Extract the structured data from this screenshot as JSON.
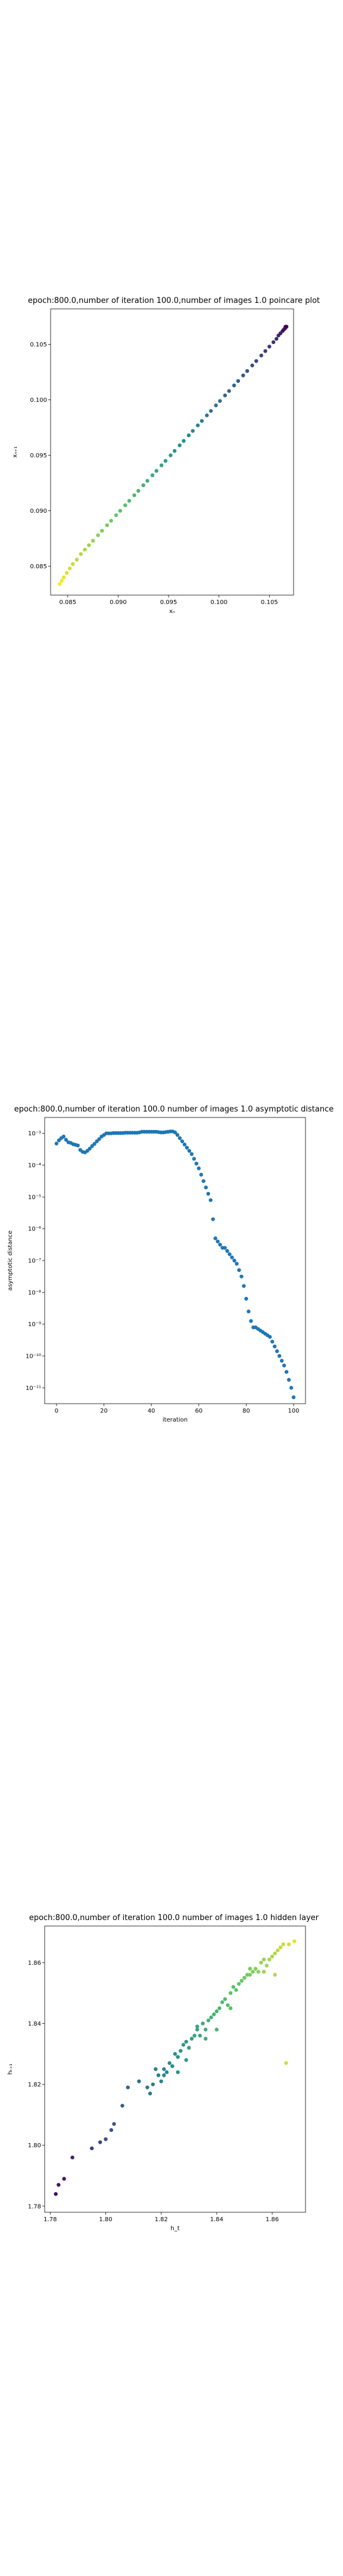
{
  "chart_data": [
    {
      "type": "scatter",
      "title": "epoch:800.0,number of iteration 100.0,number of images 1.0 poincare plot",
      "xlabel": "xₙ",
      "ylabel": "xₙ₊₁",
      "xlim": [
        0.0833,
        0.1074
      ],
      "ylim": [
        0.0824,
        0.1082
      ],
      "x_ticks": [
        "0.085",
        "0.090",
        "0.095",
        "0.100",
        "0.105"
      ],
      "y_ticks": [
        "0.085",
        "0.090",
        "0.095",
        "0.100",
        "0.105"
      ],
      "colormap": "viridis",
      "points": [
        [
          0.0842,
          0.0834
        ],
        [
          0.0844,
          0.0837
        ],
        [
          0.0846,
          0.084
        ],
        [
          0.0849,
          0.0844
        ],
        [
          0.0852,
          0.0848
        ],
        [
          0.0855,
          0.0852
        ],
        [
          0.0859,
          0.0856
        ],
        [
          0.0863,
          0.0861
        ],
        [
          0.0867,
          0.0865
        ],
        [
          0.0871,
          0.0869
        ],
        [
          0.0875,
          0.0873
        ],
        [
          0.088,
          0.0878
        ],
        [
          0.0884,
          0.0882
        ],
        [
          0.0889,
          0.0887
        ],
        [
          0.0893,
          0.0891
        ],
        [
          0.0898,
          0.0896
        ],
        [
          0.0902,
          0.09
        ],
        [
          0.0907,
          0.0905
        ],
        [
          0.0911,
          0.0909
        ],
        [
          0.0916,
          0.0914
        ],
        [
          0.092,
          0.0918
        ],
        [
          0.0925,
          0.0923
        ],
        [
          0.0929,
          0.0927
        ],
        [
          0.0934,
          0.0932
        ],
        [
          0.0938,
          0.0936
        ],
        [
          0.0943,
          0.0941
        ],
        [
          0.0947,
          0.0945
        ],
        [
          0.0952,
          0.095
        ],
        [
          0.0956,
          0.0954
        ],
        [
          0.0961,
          0.0959
        ],
        [
          0.0965,
          0.0963
        ],
        [
          0.097,
          0.0968
        ],
        [
          0.0974,
          0.0972
        ],
        [
          0.0979,
          0.0977
        ],
        [
          0.0983,
          0.0981
        ],
        [
          0.0988,
          0.0986
        ],
        [
          0.0992,
          0.099
        ],
        [
          0.0997,
          0.0995
        ],
        [
          0.1001,
          0.0999
        ],
        [
          0.1006,
          0.1004
        ],
        [
          0.101,
          0.1008
        ],
        [
          0.1015,
          0.1013
        ],
        [
          0.1019,
          0.1017
        ],
        [
          0.1024,
          0.1022
        ],
        [
          0.1028,
          0.1026
        ],
        [
          0.1033,
          0.1031
        ],
        [
          0.1037,
          0.1035
        ],
        [
          0.1042,
          0.104
        ],
        [
          0.1046,
          0.1044
        ],
        [
          0.105,
          0.1048
        ],
        [
          0.1054,
          0.1052
        ],
        [
          0.1057,
          0.1055
        ],
        [
          0.1059,
          0.1058
        ],
        [
          0.1061,
          0.106
        ],
        [
          0.1063,
          0.1062
        ],
        [
          0.1064,
          0.1063
        ],
        [
          0.1065,
          0.1064
        ],
        [
          0.1066,
          0.1065
        ],
        [
          0.1066,
          0.1066
        ],
        [
          0.1067,
          0.1066
        ]
      ]
    },
    {
      "type": "scatter",
      "title": "epoch:800.0,number of iteration 100.0  number of images 1.0 asymptotic distance",
      "xlabel": "iteration",
      "ylabel": "asymptotic distance",
      "xlim": [
        -5,
        105
      ],
      "ylim_log10": [
        -11.5,
        -2.5
      ],
      "yscale": "log",
      "x_ticks": [
        "0",
        "20",
        "40",
        "60",
        "80",
        "100"
      ],
      "y_ticks": [
        "10⁻³",
        "10⁻⁴",
        "10⁻⁵",
        "10⁻⁶",
        "10⁻⁷",
        "10⁻⁸",
        "10⁻⁹",
        "10⁻¹⁰",
        "10⁻¹¹"
      ],
      "color": "#1f77b4",
      "x": [
        0,
        1,
        2,
        3,
        4,
        5,
        6,
        7,
        8,
        9,
        10,
        11,
        12,
        13,
        14,
        15,
        16,
        17,
        18,
        19,
        20,
        21,
        22,
        23,
        24,
        25,
        26,
        27,
        28,
        29,
        30,
        31,
        32,
        33,
        34,
        35,
        36,
        37,
        38,
        39,
        40,
        41,
        42,
        43,
        44,
        45,
        46,
        47,
        48,
        49,
        50,
        51,
        52,
        53,
        54,
        55,
        56,
        57,
        58,
        59,
        60,
        61,
        62,
        63,
        64,
        65,
        66,
        67,
        68,
        69,
        70,
        71,
        72,
        73,
        74,
        75,
        76,
        77,
        78,
        79,
        80,
        81,
        82,
        83,
        84,
        85,
        86,
        87,
        88,
        89,
        90,
        91,
        92,
        93,
        94,
        95,
        96,
        97,
        98,
        99,
        100
      ],
      "log10_y": [
        -3.32,
        -3.22,
        -3.15,
        -3.1,
        -3.2,
        -3.28,
        -3.3,
        -3.34,
        -3.36,
        -3.38,
        -3.52,
        -3.58,
        -3.6,
        -3.55,
        -3.48,
        -3.4,
        -3.33,
        -3.25,
        -3.18,
        -3.1,
        -3.05,
        -3.0,
        -3.0,
        -3.0,
        -2.99,
        -2.99,
        -2.99,
        -2.99,
        -2.99,
        -2.98,
        -2.98,
        -2.98,
        -2.98,
        -2.98,
        -2.98,
        -2.97,
        -2.95,
        -2.95,
        -2.95,
        -2.95,
        -2.95,
        -2.95,
        -2.95,
        -2.96,
        -2.97,
        -2.97,
        -2.96,
        -2.95,
        -2.94,
        -2.94,
        -2.97,
        -3.05,
        -3.15,
        -3.25,
        -3.35,
        -3.45,
        -3.55,
        -3.65,
        -3.8,
        -3.95,
        -4.1,
        -4.3,
        -4.5,
        -4.7,
        -4.9,
        -5.1,
        -5.7,
        -6.3,
        -6.4,
        -6.5,
        -6.6,
        -6.6,
        -6.7,
        -6.8,
        -6.9,
        -7.0,
        -7.1,
        -7.3,
        -7.5,
        -7.8,
        -8.2,
        -8.6,
        -8.9,
        -9.1,
        -9.1,
        -9.15,
        -9.2,
        -9.25,
        -9.3,
        -9.35,
        -9.4,
        -9.55,
        -9.7,
        -9.85,
        -10.0,
        -10.15,
        -10.3,
        -10.5,
        -10.75,
        -11.0,
        -11.3
      ]
    },
    {
      "type": "scatter",
      "title": "epoch:800.0,number of iteration 100.0  number of images 1.0 hidden layer",
      "xlabel": "h_t",
      "ylabel": "hₜ₊₁",
      "xlim": [
        1.778,
        1.872
      ],
      "ylim": [
        1.778,
        1.872
      ],
      "x_ticks": [
        "1.78",
        "1.80",
        "1.82",
        "1.84",
        "1.86"
      ],
      "y_ticks": [
        "1.78",
        "1.80",
        "1.82",
        "1.84",
        "1.86"
      ],
      "colormap": "viridis",
      "points": [
        [
          1.782,
          1.784
        ],
        [
          1.783,
          1.787
        ],
        [
          1.785,
          1.789
        ],
        [
          1.788,
          1.796
        ],
        [
          1.795,
          1.799
        ],
        [
          1.798,
          1.801
        ],
        [
          1.8,
          1.802
        ],
        [
          1.802,
          1.805
        ],
        [
          1.803,
          1.807
        ],
        [
          1.806,
          1.813
        ],
        [
          1.808,
          1.819
        ],
        [
          1.812,
          1.821
        ],
        [
          1.815,
          1.819
        ],
        [
          1.816,
          1.817
        ],
        [
          1.817,
          1.82
        ],
        [
          1.818,
          1.825
        ],
        [
          1.819,
          1.823
        ],
        [
          1.82,
          1.821
        ],
        [
          1.821,
          1.825
        ],
        [
          1.822,
          1.824
        ],
        [
          1.823,
          1.827
        ],
        [
          1.824,
          1.826
        ],
        [
          1.825,
          1.83
        ],
        [
          1.826,
          1.829
        ],
        [
          1.827,
          1.831
        ],
        [
          1.828,
          1.833
        ],
        [
          1.829,
          1.834
        ],
        [
          1.83,
          1.832
        ],
        [
          1.831,
          1.835
        ],
        [
          1.832,
          1.836
        ],
        [
          1.833,
          1.838
        ],
        [
          1.834,
          1.836
        ],
        [
          1.835,
          1.84
        ],
        [
          1.836,
          1.838
        ],
        [
          1.837,
          1.841
        ],
        [
          1.838,
          1.842
        ],
        [
          1.839,
          1.843
        ],
        [
          1.84,
          1.844
        ],
        [
          1.841,
          1.845
        ],
        [
          1.842,
          1.847
        ],
        [
          1.843,
          1.848
        ],
        [
          1.844,
          1.846
        ],
        [
          1.845,
          1.85
        ],
        [
          1.846,
          1.852
        ],
        [
          1.847,
          1.851
        ],
        [
          1.848,
          1.853
        ],
        [
          1.849,
          1.854
        ],
        [
          1.85,
          1.855
        ],
        [
          1.851,
          1.856
        ],
        [
          1.852,
          1.856
        ],
        [
          1.853,
          1.857
        ],
        [
          1.854,
          1.858
        ],
        [
          1.855,
          1.857
        ],
        [
          1.856,
          1.86
        ],
        [
          1.857,
          1.861
        ],
        [
          1.858,
          1.859
        ],
        [
          1.859,
          1.861
        ],
        [
          1.86,
          1.862
        ],
        [
          1.861,
          1.863
        ],
        [
          1.862,
          1.864
        ],
        [
          1.863,
          1.865
        ],
        [
          1.864,
          1.866
        ],
        [
          1.866,
          1.866
        ],
        [
          1.868,
          1.867
        ],
        [
          1.865,
          1.827
        ],
        [
          1.833,
          1.839
        ],
        [
          1.829,
          1.828
        ],
        [
          1.836,
          1.835
        ],
        [
          1.84,
          1.838
        ],
        [
          1.845,
          1.845
        ],
        [
          1.852,
          1.858
        ],
        [
          1.857,
          1.857
        ],
        [
          1.861,
          1.856
        ],
        [
          1.826,
          1.824
        ],
        [
          1.821,
          1.823
        ]
      ]
    }
  ]
}
